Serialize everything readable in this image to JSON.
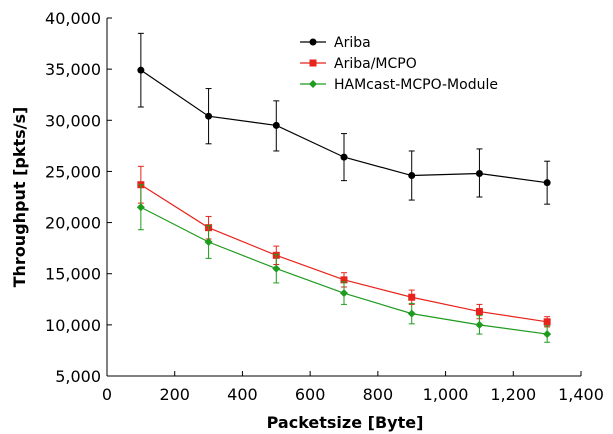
{
  "chart_data": {
    "type": "line",
    "xlabel": "Packetsize [Byte]",
    "ylabel": "Throughput [pkts/s]",
    "xlim": [
      0,
      1400
    ],
    "ylim": [
      5000,
      40000
    ],
    "x_ticks": [
      0,
      200,
      400,
      600,
      800,
      1000,
      1200,
      1400
    ],
    "x_tick_labels": [
      "0",
      "200",
      "400",
      "600",
      "800",
      "1,000",
      "1,200",
      "1,400"
    ],
    "y_ticks": [
      5000,
      10000,
      15000,
      20000,
      25000,
      30000,
      35000,
      40000
    ],
    "y_tick_labels": [
      "5,000",
      "10,000",
      "15,000",
      "20,000",
      "25,000",
      "30,000",
      "35,000",
      "40,000"
    ],
    "grid": false,
    "legend_position": "top-center",
    "x": [
      100,
      300,
      500,
      700,
      900,
      1100,
      1300
    ],
    "series": [
      {
        "name": "Ariba",
        "color": "#000000",
        "marker": "circle",
        "values": [
          34900,
          30400,
          29500,
          26400,
          24600,
          24800,
          23900
        ],
        "err_low": [
          31300,
          27700,
          27000,
          24100,
          22200,
          22500,
          21800
        ],
        "err_high": [
          38500,
          33100,
          31900,
          28700,
          27000,
          27200,
          26000
        ]
      },
      {
        "name": "Ariba/MCPO",
        "color": "#e8231c",
        "marker": "square",
        "values": [
          23700,
          19500,
          16800,
          14400,
          12700,
          11300,
          10300
        ],
        "err_low": [
          21900,
          18400,
          15900,
          13700,
          12000,
          10600,
          9800
        ],
        "err_high": [
          25500,
          20600,
          17700,
          15100,
          13400,
          12000,
          10800
        ]
      },
      {
        "name": "HAMcast-MCPO-Module",
        "color": "#1f9b1f",
        "marker": "diamond",
        "values": [
          21500,
          18100,
          15500,
          13100,
          11100,
          10000,
          9100
        ],
        "err_low": [
          19300,
          16500,
          14100,
          12000,
          10100,
          9100,
          8300
        ],
        "err_high": [
          23700,
          19700,
          16900,
          14200,
          12100,
          10900,
          9900
        ]
      }
    ]
  }
}
